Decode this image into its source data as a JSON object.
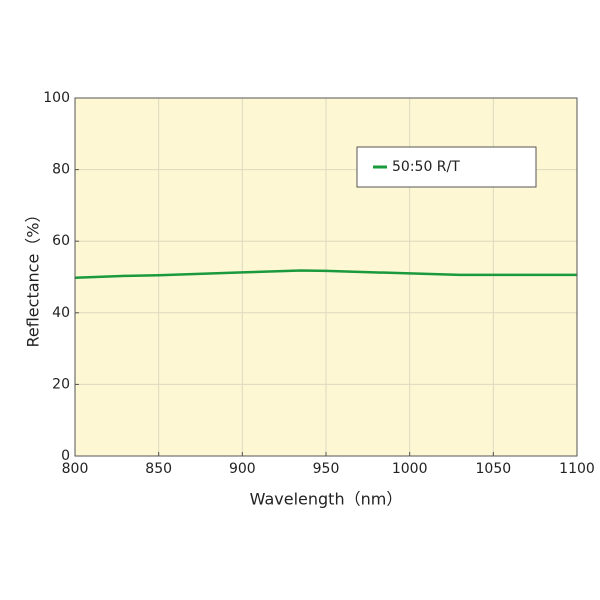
{
  "chart_data": {
    "type": "line",
    "x_label": "Wavelength（nm）",
    "y_label": "Reflectance（%）",
    "x": [
      800,
      830,
      850,
      900,
      935,
      950,
      1000,
      1030,
      1050,
      1100
    ],
    "series": [
      {
        "name": "50:50 R/T",
        "color": "#1a9a3c",
        "values": [
          49.8,
          50.3,
          50.5,
          51.3,
          51.8,
          51.7,
          51.0,
          50.6,
          50.6,
          50.6
        ]
      }
    ],
    "xlim": [
      800,
      1100
    ],
    "xticks": [
      800,
      850,
      900,
      950,
      1000,
      1050,
      1100
    ],
    "ylim": [
      0,
      100
    ],
    "yticks": [
      0,
      20,
      40,
      60,
      80,
      100
    ],
    "grid": true,
    "legend": "upper right"
  }
}
